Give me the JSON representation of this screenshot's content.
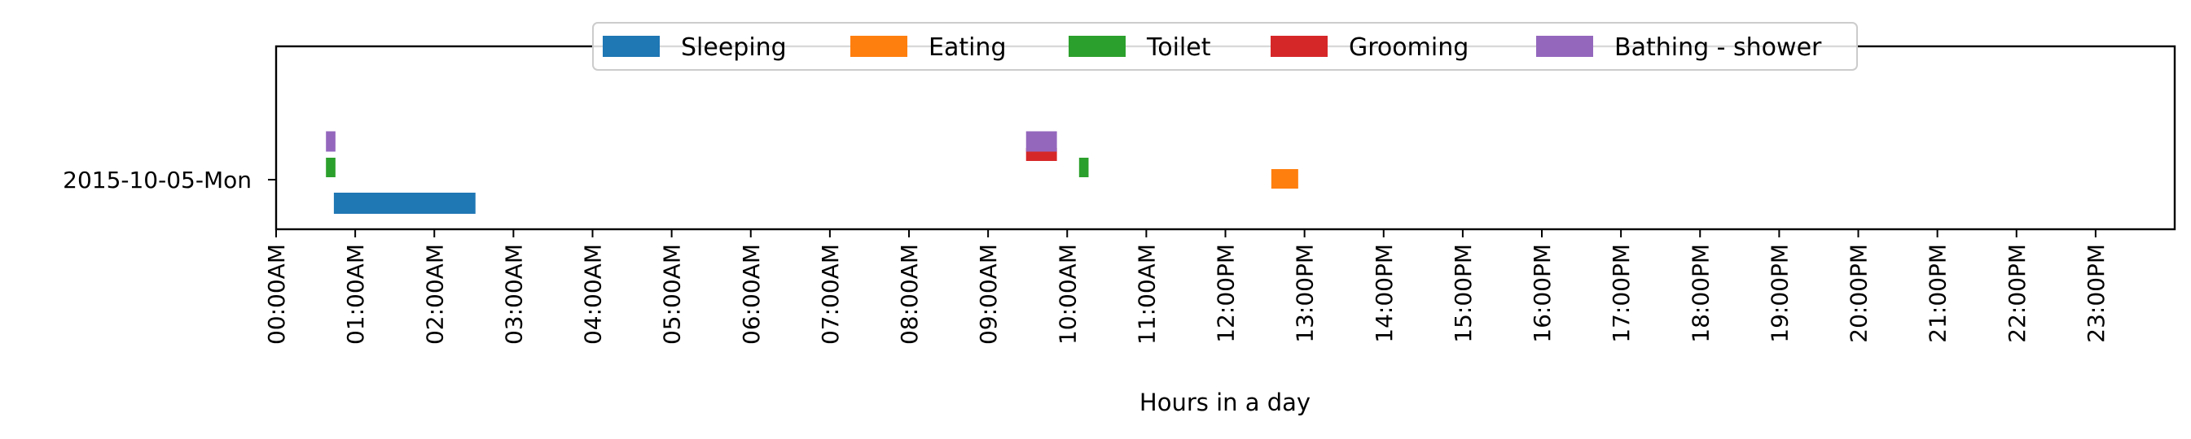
{
  "chart_data": {
    "type": "timeline",
    "xlabel": "Hours in a day",
    "xlim": [
      0,
      24
    ],
    "x_ticks": [
      {
        "value": 0,
        "label": "00:00AM"
      },
      {
        "value": 1,
        "label": "01:00AM"
      },
      {
        "value": 2,
        "label": "02:00AM"
      },
      {
        "value": 3,
        "label": "03:00AM"
      },
      {
        "value": 4,
        "label": "04:00AM"
      },
      {
        "value": 5,
        "label": "05:00AM"
      },
      {
        "value": 6,
        "label": "06:00AM"
      },
      {
        "value": 7,
        "label": "07:00AM"
      },
      {
        "value": 8,
        "label": "08:00AM"
      },
      {
        "value": 9,
        "label": "09:00AM"
      },
      {
        "value": 10,
        "label": "10:00AM"
      },
      {
        "value": 11,
        "label": "11:00AM"
      },
      {
        "value": 12,
        "label": "12:00PM"
      },
      {
        "value": 13,
        "label": "13:00PM"
      },
      {
        "value": 14,
        "label": "14:00PM"
      },
      {
        "value": 15,
        "label": "15:00PM"
      },
      {
        "value": 16,
        "label": "16:00PM"
      },
      {
        "value": 17,
        "label": "17:00PM"
      },
      {
        "value": 18,
        "label": "18:00PM"
      },
      {
        "value": 19,
        "label": "19:00PM"
      },
      {
        "value": 20,
        "label": "20:00PM"
      },
      {
        "value": 21,
        "label": "21:00PM"
      },
      {
        "value": 22,
        "label": "22:00PM"
      },
      {
        "value": 23,
        "label": "23:00PM"
      }
    ],
    "y_categories": [
      "2015-10-05-Mon"
    ],
    "legend_position": "top-center",
    "series": [
      {
        "name": "Sleeping",
        "color": "#1f77b4",
        "lane": 0,
        "intervals": [
          [
            0.73,
            2.52
          ]
        ]
      },
      {
        "name": "Eating",
        "color": "#ff7f0e",
        "lane": 1,
        "intervals": [
          [
            12.58,
            12.92
          ]
        ]
      },
      {
        "name": "Toilet",
        "color": "#2ca02c",
        "lane": 2,
        "intervals": [
          [
            0.63,
            0.75
          ],
          [
            10.15,
            10.27
          ]
        ]
      },
      {
        "name": "Grooming",
        "color": "#d62728",
        "lane": 3,
        "intervals": [
          [
            9.48,
            9.87
          ]
        ]
      },
      {
        "name": "Bathing - shower",
        "color": "#9467bd",
        "lane": 4,
        "intervals": [
          [
            0.63,
            0.75
          ],
          [
            9.48,
            9.87
          ]
        ]
      }
    ]
  }
}
